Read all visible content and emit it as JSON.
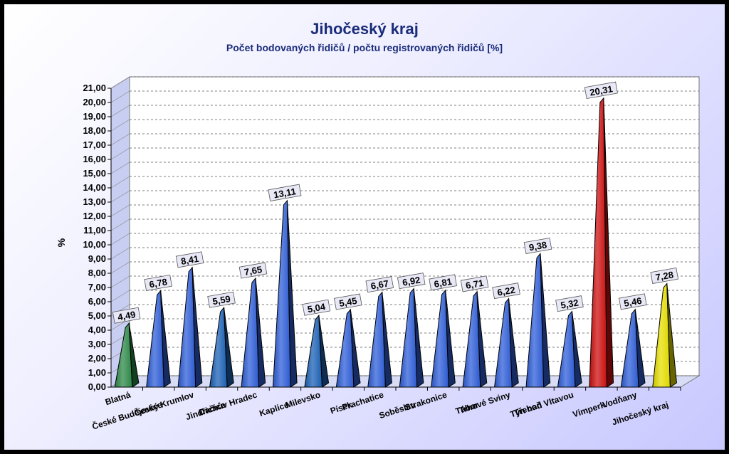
{
  "chart_data": {
    "type": "bar",
    "title": "Jihočeský kraj",
    "subtitle": "Počet bodovaných řidičů / počtu registrovaných řidičů [%]",
    "ylabel": "%",
    "xlabel": "",
    "ylim": [
      0,
      21
    ],
    "ytick_step": 1,
    "grid": true,
    "categories": [
      "Blatná",
      "České Budějovice",
      "Český Krumlov",
      "Dačice",
      "Jindřichův Hradec",
      "Kaplice",
      "Milevsko",
      "Písek",
      "Prachatice",
      "Soběslav",
      "Strakonice",
      "Tábor",
      "Trhové Sviny",
      "Třeboň",
      "Týn nad Vltavou",
      "Vimperk",
      "Vodňany",
      "Jihočeský kraj"
    ],
    "values": [
      4.49,
      6.78,
      8.41,
      5.59,
      7.65,
      13.11,
      5.04,
      5.45,
      6.67,
      6.92,
      6.81,
      6.71,
      6.22,
      9.38,
      5.32,
      20.31,
      5.46,
      7.28
    ],
    "value_labels": [
      "4,49",
      "6,78",
      "8,41",
      "5,59",
      "7,65",
      "13,11",
      "5,04",
      "5,45",
      "6,67",
      "6,92",
      "6,81",
      "6,71",
      "6,22",
      "9,38",
      "5,32",
      "20,31",
      "5,46",
      "7,28"
    ],
    "bar_colors": [
      "#2e8b4a",
      "#2f5fd9",
      "#2f5fd9",
      "#1c63b8",
      "#2f5fd9",
      "#2f5fd9",
      "#1c63b8",
      "#2f5fd9",
      "#2f5fd9",
      "#2f5fd9",
      "#2f5fd9",
      "#2f5fd9",
      "#2f5fd9",
      "#2f5fd9",
      "#2f5fd9",
      "#d01010",
      "#2f5fd9",
      "#e8e000"
    ]
  }
}
